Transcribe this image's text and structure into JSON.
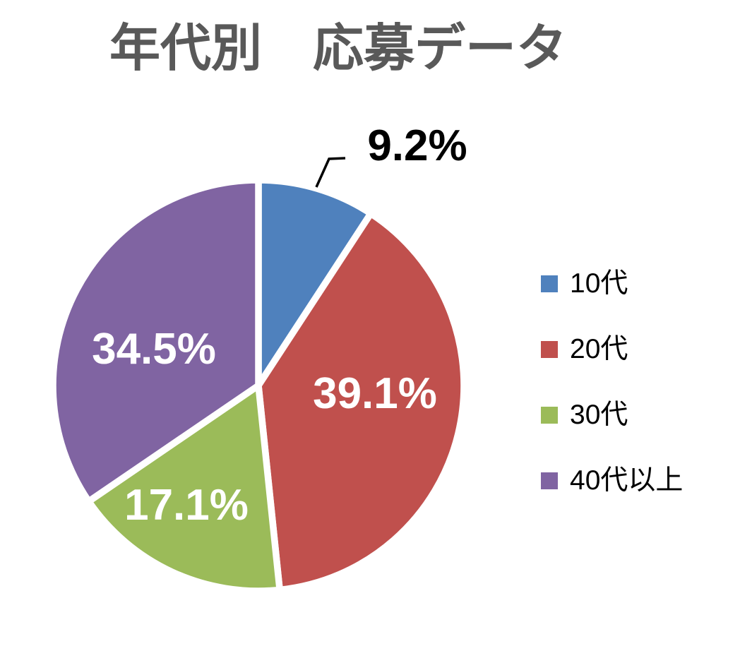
{
  "title": "年代別　応募データ",
  "chart_data": {
    "type": "pie",
    "title": "年代別　応募データ",
    "categories": [
      "10代",
      "20代",
      "30代",
      "40代以上"
    ],
    "values": [
      9.2,
      39.1,
      17.1,
      34.5
    ],
    "value_labels": [
      "9.2%",
      "39.1%",
      "17.1%",
      "34.5%"
    ],
    "unit": "%",
    "colors": [
      "#4F81BD",
      "#C0504D",
      "#9BBB59",
      "#8064A2"
    ],
    "slice_border_color": "#FFFFFF",
    "start_angle_deg": 0,
    "direction": "clockwise",
    "label_inside_color": "#FFFFFF",
    "label_outside_color": "#000000",
    "outside_labeled_slice": "10代",
    "title_color": "#595959",
    "legend_position": "right"
  },
  "legend": {
    "items": [
      {
        "label": "10代",
        "color": "#4F81BD"
      },
      {
        "label": "20代",
        "color": "#C0504D"
      },
      {
        "label": "30代",
        "color": "#9BBB59"
      },
      {
        "label": "40代以上",
        "color": "#8064A2"
      }
    ]
  }
}
